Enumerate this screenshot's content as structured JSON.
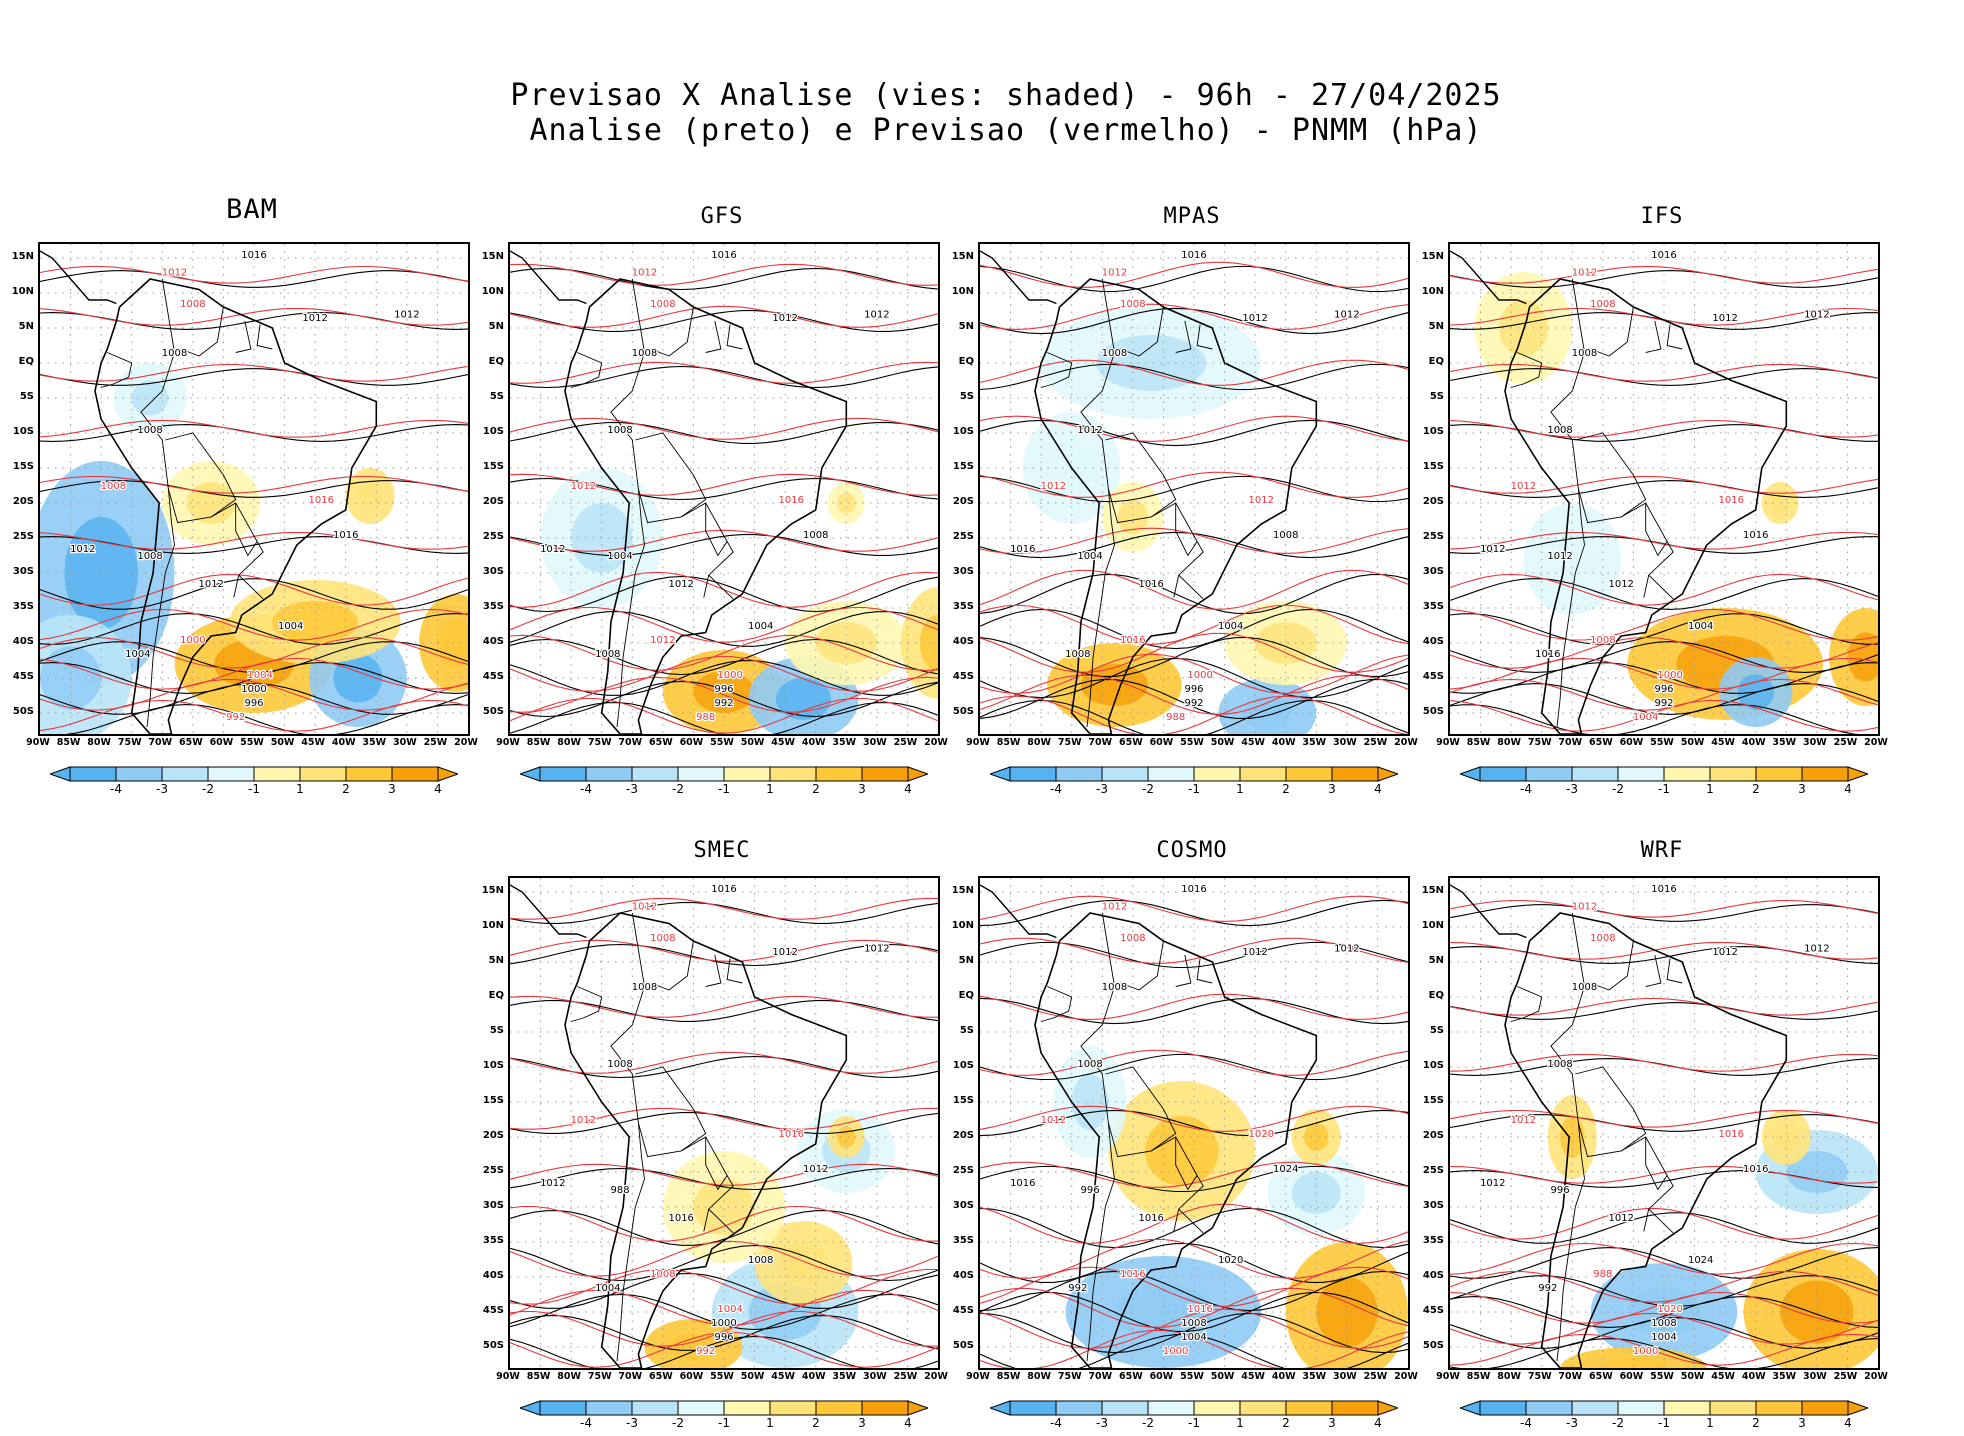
{
  "title": {
    "line1": "Previsao X Analise (vies: shaded) - 96h - 27/04/2025",
    "line2": "Analise (preto) e Previsao (vermelho) - PNMM (hPa)"
  },
  "chart_data": {
    "type": "heatmap",
    "title": "Previsao X Analise (vies: shaded) - 96h - 27/04/2025",
    "subtitle": "Analise (preto) e Previsao (vermelho) - PNMM (hPa)",
    "variable": "PNMM (hPa)",
    "lat_ticks": [
      "15N",
      "10N",
      "5N",
      "EQ",
      "5S",
      "10S",
      "15S",
      "20S",
      "25S",
      "30S",
      "35S",
      "40S",
      "45S",
      "50S"
    ],
    "lon_ticks": [
      "90W",
      "85W",
      "80W",
      "75W",
      "70W",
      "65W",
      "60W",
      "55W",
      "50W",
      "45W",
      "40W",
      "35W",
      "30W",
      "25W",
      "20W"
    ],
    "lat_range": [
      -53,
      17
    ],
    "lon_range": [
      -90,
      -20
    ],
    "colorbar_levels": [
      -4,
      -3,
      -2,
      -1,
      1,
      2,
      3,
      4
    ],
    "colorbar_labels": [
      "-4",
      "-3",
      "-2",
      "-1",
      "1",
      "2",
      "3",
      "4"
    ],
    "colorbar_colors": [
      "#57b3f0",
      "#8fcbf5",
      "#b9e4f7",
      "#e0f8fb",
      "#ffffff",
      "#fff7b0",
      "#ffe37a",
      "#ffc838",
      "#f7a00c"
    ],
    "analysis_color": "#000000",
    "forecast_color": "#e8383d",
    "panels": [
      {
        "name": "BAM",
        "labels": [
          "1016",
          "1012",
          "1012",
          "1012",
          "1008",
          "1008",
          "1008",
          "1008",
          "1012",
          "1012",
          "1016",
          "1016",
          "1004",
          "1004",
          "1000",
          "996",
          "992",
          "1008",
          "1004",
          "1000"
        ],
        "anomalies": [
          {
            "lon": -80,
            "lat": -30,
            "v": -3.5,
            "rx": 12,
            "ry": 16
          },
          {
            "lon": -85,
            "lat": -45,
            "v": -2.5,
            "rx": 10,
            "ry": 9
          },
          {
            "lon": -55,
            "lat": -43,
            "v": 3.5,
            "rx": 13,
            "ry": 7
          },
          {
            "lon": -38,
            "lat": -45,
            "v": -3.2,
            "rx": 8,
            "ry": 7
          },
          {
            "lon": -45,
            "lat": -37,
            "v": 2.5,
            "rx": 14,
            "ry": 6
          },
          {
            "lon": -22,
            "lat": -40,
            "v": 3.0,
            "rx": 6,
            "ry": 7
          },
          {
            "lon": -36,
            "lat": -19,
            "v": 2.0,
            "rx": 4,
            "ry": 4
          },
          {
            "lon": -72,
            "lat": -5,
            "v": -1.5,
            "rx": 6,
            "ry": 5
          },
          {
            "lon": -62,
            "lat": -20,
            "v": 1.5,
            "rx": 8,
            "ry": 6
          }
        ]
      },
      {
        "name": "GFS",
        "labels": [
          "1016",
          "1012",
          "1012",
          "1012",
          "1008",
          "1008",
          "1008",
          "1012",
          "1012",
          "1012",
          "1016",
          "1008",
          "1004",
          "1000",
          "996",
          "992",
          "988",
          "1004",
          "1008",
          "1012"
        ],
        "anomalies": [
          {
            "lon": -55,
            "lat": -47,
            "v": 3.2,
            "rx": 10,
            "ry": 6
          },
          {
            "lon": -42,
            "lat": -48,
            "v": -3.6,
            "rx": 9,
            "ry": 6
          },
          {
            "lon": -35,
            "lat": -40,
            "v": 1.5,
            "rx": 10,
            "ry": 6
          },
          {
            "lon": -20,
            "lat": -40,
            "v": 2.2,
            "rx": 6,
            "ry": 8
          },
          {
            "lon": -35,
            "lat": -20,
            "v": 1.5,
            "rx": 3,
            "ry": 3
          },
          {
            "lon": -75,
            "lat": -25,
            "v": -1.2,
            "rx": 10,
            "ry": 10
          }
        ]
      },
      {
        "name": "MPAS",
        "labels": [
          "1016",
          "1012",
          "1012",
          "1012",
          "1008",
          "1008",
          "1012",
          "1012",
          "1016",
          "1016",
          "1012",
          "1008",
          "1004",
          "1000",
          "996",
          "992",
          "988",
          "1004",
          "1008",
          "1016"
        ],
        "anomalies": [
          {
            "lon": -68,
            "lat": -46,
            "v": 3.4,
            "rx": 11,
            "ry": 6
          },
          {
            "lon": -43,
            "lat": -50,
            "v": -3.0,
            "rx": 8,
            "ry": 5
          },
          {
            "lon": -40,
            "lat": -40,
            "v": 1.5,
            "rx": 10,
            "ry": 6
          },
          {
            "lon": -62,
            "lat": 0,
            "v": -1.5,
            "rx": 18,
            "ry": 8
          },
          {
            "lon": -75,
            "lat": -15,
            "v": -1.0,
            "rx": 8,
            "ry": 8
          },
          {
            "lon": -65,
            "lat": -22,
            "v": 1.5,
            "rx": 5,
            "ry": 5
          }
        ]
      },
      {
        "name": "IFS",
        "labels": [
          "1016",
          "1012",
          "1012",
          "1012",
          "1008",
          "1008",
          "1008",
          "1012",
          "1012",
          "1012",
          "1016",
          "1016",
          "1004",
          "1000",
          "996",
          "992",
          "1004",
          "1012",
          "1016",
          "1008"
        ],
        "anomalies": [
          {
            "lon": -45,
            "lat": -43,
            "v": 3.5,
            "rx": 16,
            "ry": 8
          },
          {
            "lon": -40,
            "lat": -47,
            "v": -3.2,
            "rx": 6,
            "ry": 5
          },
          {
            "lon": -22,
            "lat": -42,
            "v": 3.4,
            "rx": 6,
            "ry": 7
          },
          {
            "lon": -78,
            "lat": 5,
            "v": 1.5,
            "rx": 8,
            "ry": 8
          },
          {
            "lon": -36,
            "lat": -20,
            "v": 2.0,
            "rx": 3,
            "ry": 3
          },
          {
            "lon": -70,
            "lat": -28,
            "v": -1.0,
            "rx": 8,
            "ry": 8
          }
        ]
      },
      {
        "name": "SMEC",
        "labels": [
          "1016",
          "1012",
          "1012",
          "1012",
          "1008",
          "1008",
          "1008",
          "1012",
          "1012",
          "1016",
          "1016",
          "1012",
          "1008",
          "1004",
          "1000",
          "996",
          "992",
          "988",
          "1004",
          "1008"
        ],
        "anomalies": [
          {
            "lon": -45,
            "lat": -45,
            "v": -2.8,
            "rx": 12,
            "ry": 8
          },
          {
            "lon": -60,
            "lat": -50,
            "v": 3.0,
            "rx": 8,
            "ry": 4
          },
          {
            "lon": -42,
            "lat": -38,
            "v": 2.0,
            "rx": 8,
            "ry": 6
          },
          {
            "lon": -35,
            "lat": -22,
            "v": -1.5,
            "rx": 8,
            "ry": 6
          },
          {
            "lon": -35,
            "lat": -20,
            "v": 2.5,
            "rx": 3,
            "ry": 3
          },
          {
            "lon": -55,
            "lat": -30,
            "v": 1.5,
            "rx": 10,
            "ry": 8
          }
        ]
      },
      {
        "name": "COSMO",
        "labels": [
          "1016",
          "1012",
          "1012",
          "1012",
          "1008",
          "1008",
          "1008",
          "1012",
          "1016",
          "1016",
          "1020",
          "1024",
          "1020",
          "1016",
          "1008",
          "1004",
          "1000",
          "996",
          "992",
          "1016"
        ],
        "anomalies": [
          {
            "lon": -60,
            "lat": -45,
            "v": -3.0,
            "rx": 16,
            "ry": 8
          },
          {
            "lon": -30,
            "lat": -45,
            "v": 3.6,
            "rx": 10,
            "ry": 10
          },
          {
            "lon": -35,
            "lat": -28,
            "v": -1.8,
            "rx": 8,
            "ry": 6
          },
          {
            "lon": -57,
            "lat": -22,
            "v": 2.2,
            "rx": 12,
            "ry": 10
          },
          {
            "lon": -72,
            "lat": -15,
            "v": -1.8,
            "rx": 6,
            "ry": 8
          },
          {
            "lon": -35,
            "lat": -20,
            "v": 2.5,
            "rx": 4,
            "ry": 4
          }
        ]
      },
      {
        "name": "WRF",
        "labels": [
          "1016",
          "1012",
          "1012",
          "1012",
          "1008",
          "1008",
          "1008",
          "1012",
          "1012",
          "1012",
          "1016",
          "1016",
          "1024",
          "1020",
          "1008",
          "1004",
          "1000",
          "996",
          "992",
          "988"
        ],
        "anomalies": [
          {
            "lon": -30,
            "lat": -45,
            "v": 3.5,
            "rx": 12,
            "ry": 9
          },
          {
            "lon": -55,
            "lat": -45,
            "v": -3.0,
            "rx": 12,
            "ry": 7
          },
          {
            "lon": -30,
            "lat": -25,
            "v": -2.8,
            "rx": 10,
            "ry": 6
          },
          {
            "lon": -70,
            "lat": -20,
            "v": 2.5,
            "rx": 4,
            "ry": 6
          },
          {
            "lon": -60,
            "lat": -53,
            "v": 3.0,
            "rx": 12,
            "ry": 3
          },
          {
            "lon": -35,
            "lat": -20,
            "v": 2.0,
            "rx": 4,
            "ry": 4
          }
        ]
      }
    ]
  }
}
